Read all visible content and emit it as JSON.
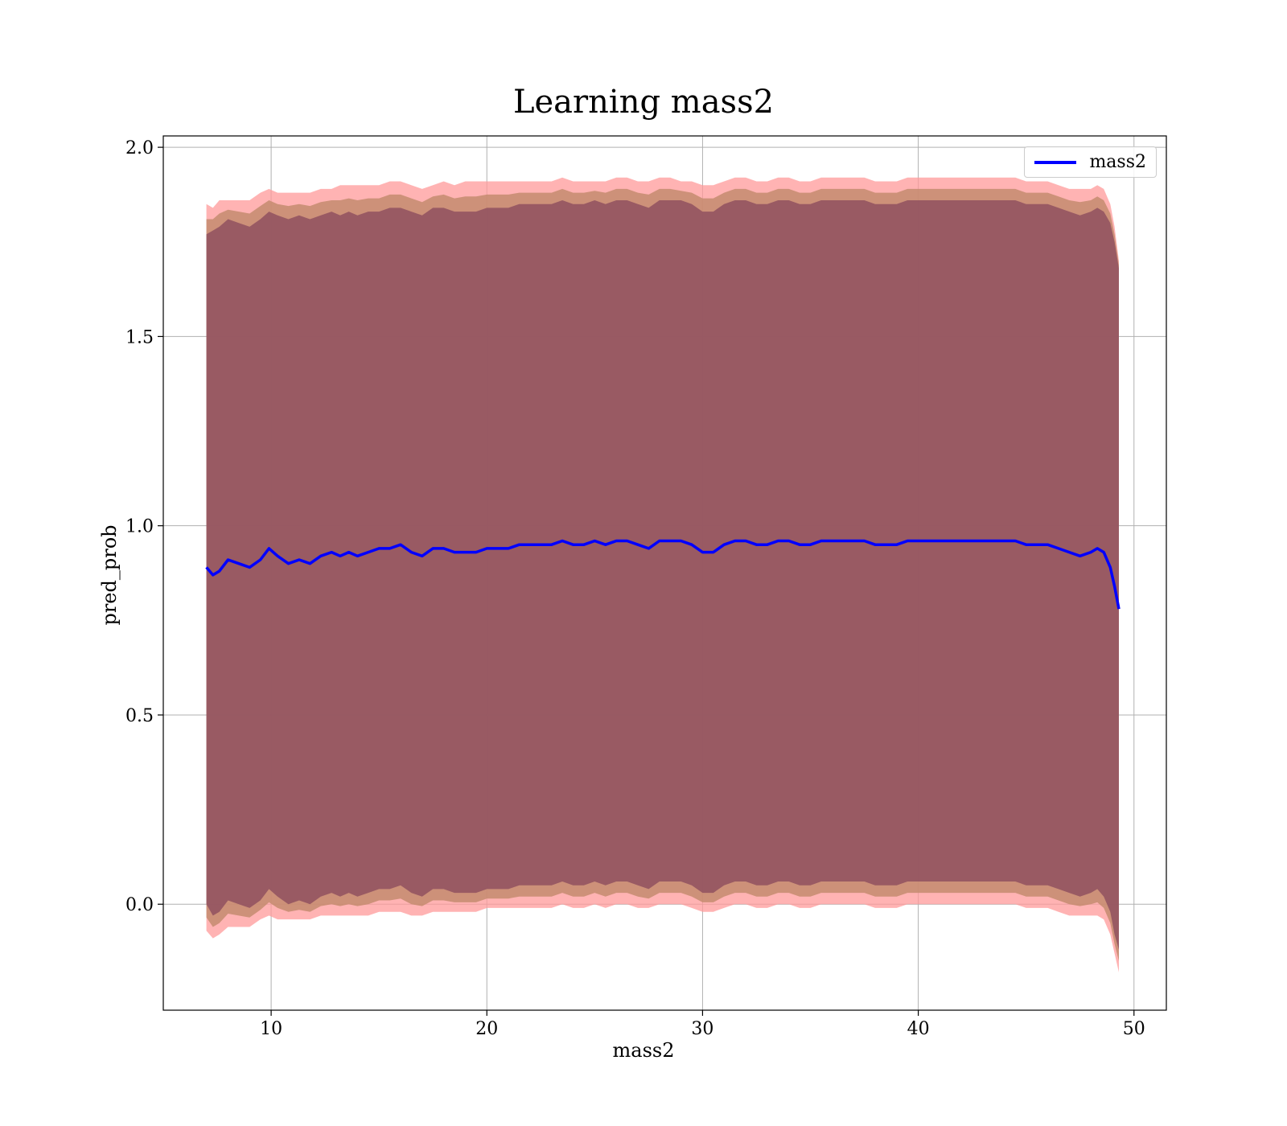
{
  "chart_data": {
    "type": "line",
    "title": "Learning mass2",
    "xlabel": "mass2",
    "ylabel": "pred_prob",
    "xlim": [
      5,
      51.5
    ],
    "ylim": [
      -0.28,
      2.03
    ],
    "xticks": [
      10,
      20,
      30,
      40,
      50
    ],
    "yticks": [
      0.0,
      0.5,
      1.0,
      1.5,
      2.0
    ],
    "ytick_labels": [
      "0.0",
      "0.5",
      "1.0",
      "1.5",
      "2.0"
    ],
    "grid": true,
    "legend": {
      "position": "top-right",
      "entries": [
        "mass2"
      ]
    },
    "colors": {
      "line": "#0000ff",
      "band_outer": "#ff9999",
      "band_inner": "#8b4a5d",
      "band_mid": "#c48b6e"
    },
    "series": [
      {
        "name": "mass2",
        "x": [
          7.0,
          7.3,
          7.6,
          8.0,
          8.5,
          9.0,
          9.5,
          9.9,
          10.3,
          10.8,
          11.3,
          11.8,
          12.3,
          12.8,
          13.2,
          13.6,
          14.0,
          14.5,
          15.0,
          15.5,
          16.0,
          16.5,
          17.0,
          17.5,
          18.0,
          18.5,
          19.0,
          19.5,
          20.0,
          20.5,
          21.0,
          21.5,
          22.0,
          22.5,
          23.0,
          23.5,
          24.0,
          24.5,
          25.0,
          25.5,
          26.0,
          26.5,
          27.0,
          27.5,
          28.0,
          28.5,
          29.0,
          29.5,
          30.0,
          30.5,
          31.0,
          31.5,
          32.0,
          32.5,
          33.0,
          33.5,
          34.0,
          34.5,
          35.0,
          35.5,
          36.0,
          36.5,
          37.0,
          37.5,
          38.0,
          38.5,
          39.0,
          39.5,
          40.0,
          40.5,
          41.0,
          41.5,
          42.0,
          42.5,
          43.0,
          43.5,
          44.0,
          44.5,
          45.0,
          45.5,
          46.0,
          46.5,
          47.0,
          47.5,
          48.0,
          48.3,
          48.6,
          48.9,
          49.1,
          49.3
        ],
        "y": [
          0.89,
          0.87,
          0.88,
          0.91,
          0.9,
          0.89,
          0.91,
          0.94,
          0.92,
          0.9,
          0.91,
          0.9,
          0.92,
          0.93,
          0.92,
          0.93,
          0.92,
          0.93,
          0.94,
          0.94,
          0.95,
          0.93,
          0.92,
          0.94,
          0.94,
          0.93,
          0.93,
          0.93,
          0.94,
          0.94,
          0.94,
          0.95,
          0.95,
          0.95,
          0.95,
          0.96,
          0.95,
          0.95,
          0.96,
          0.95,
          0.96,
          0.96,
          0.95,
          0.94,
          0.96,
          0.96,
          0.96,
          0.95,
          0.93,
          0.93,
          0.95,
          0.96,
          0.96,
          0.95,
          0.95,
          0.96,
          0.96,
          0.95,
          0.95,
          0.96,
          0.96,
          0.96,
          0.96,
          0.96,
          0.95,
          0.95,
          0.95,
          0.96,
          0.96,
          0.96,
          0.96,
          0.96,
          0.96,
          0.96,
          0.96,
          0.96,
          0.96,
          0.96,
          0.95,
          0.95,
          0.95,
          0.94,
          0.93,
          0.92,
          0.93,
          0.94,
          0.93,
          0.89,
          0.84,
          0.78
        ],
        "band_outer_upper": [
          1.85,
          1.84,
          1.86,
          1.86,
          1.86,
          1.86,
          1.88,
          1.89,
          1.88,
          1.88,
          1.88,
          1.88,
          1.89,
          1.89,
          1.9,
          1.9,
          1.9,
          1.9,
          1.9,
          1.91,
          1.91,
          1.9,
          1.89,
          1.9,
          1.91,
          1.9,
          1.91,
          1.91,
          1.91,
          1.91,
          1.91,
          1.91,
          1.91,
          1.91,
          1.91,
          1.92,
          1.91,
          1.91,
          1.91,
          1.91,
          1.92,
          1.92,
          1.91,
          1.91,
          1.92,
          1.92,
          1.91,
          1.91,
          1.9,
          1.9,
          1.91,
          1.92,
          1.92,
          1.91,
          1.91,
          1.92,
          1.92,
          1.91,
          1.91,
          1.92,
          1.92,
          1.92,
          1.92,
          1.92,
          1.91,
          1.91,
          1.91,
          1.92,
          1.92,
          1.92,
          1.92,
          1.92,
          1.92,
          1.92,
          1.92,
          1.92,
          1.92,
          1.92,
          1.91,
          1.91,
          1.91,
          1.9,
          1.89,
          1.89,
          1.89,
          1.9,
          1.89,
          1.85,
          1.79,
          1.7
        ],
        "band_outer_lower": [
          -0.07,
          -0.09,
          -0.08,
          -0.06,
          -0.06,
          -0.06,
          -0.04,
          -0.03,
          -0.04,
          -0.04,
          -0.04,
          -0.04,
          -0.03,
          -0.03,
          -0.03,
          -0.03,
          -0.03,
          -0.03,
          -0.02,
          -0.02,
          -0.02,
          -0.03,
          -0.03,
          -0.02,
          -0.02,
          -0.02,
          -0.02,
          -0.02,
          -0.01,
          -0.01,
          -0.01,
          -0.01,
          -0.01,
          -0.01,
          -0.01,
          0.0,
          -0.01,
          -0.01,
          0.0,
          -0.01,
          0.0,
          0.0,
          -0.01,
          -0.01,
          0.0,
          0.0,
          0.0,
          -0.01,
          -0.02,
          -0.02,
          -0.01,
          0.0,
          0.0,
          -0.01,
          -0.01,
          0.0,
          0.0,
          -0.01,
          -0.01,
          0.0,
          0.0,
          0.0,
          0.0,
          0.0,
          -0.01,
          -0.01,
          -0.01,
          0.0,
          0.0,
          0.0,
          0.0,
          0.0,
          0.0,
          0.0,
          0.0,
          0.0,
          0.0,
          0.0,
          -0.01,
          -0.01,
          -0.01,
          -0.02,
          -0.03,
          -0.03,
          -0.03,
          -0.03,
          -0.04,
          -0.08,
          -0.13,
          -0.18
        ],
        "band_inner_upper": [
          1.77,
          1.78,
          1.79,
          1.81,
          1.8,
          1.79,
          1.81,
          1.83,
          1.82,
          1.81,
          1.82,
          1.81,
          1.82,
          1.83,
          1.82,
          1.83,
          1.82,
          1.83,
          1.83,
          1.84,
          1.84,
          1.83,
          1.82,
          1.84,
          1.84,
          1.83,
          1.83,
          1.83,
          1.84,
          1.84,
          1.84,
          1.85,
          1.85,
          1.85,
          1.85,
          1.86,
          1.85,
          1.85,
          1.86,
          1.85,
          1.86,
          1.86,
          1.85,
          1.84,
          1.86,
          1.86,
          1.86,
          1.85,
          1.83,
          1.83,
          1.85,
          1.86,
          1.86,
          1.85,
          1.85,
          1.86,
          1.86,
          1.85,
          1.85,
          1.86,
          1.86,
          1.86,
          1.86,
          1.86,
          1.85,
          1.85,
          1.85,
          1.86,
          1.86,
          1.86,
          1.86,
          1.86,
          1.86,
          1.86,
          1.86,
          1.86,
          1.86,
          1.86,
          1.85,
          1.85,
          1.85,
          1.84,
          1.83,
          1.82,
          1.83,
          1.84,
          1.83,
          1.8,
          1.75,
          1.68
        ],
        "band_inner_lower": [
          0.0,
          -0.03,
          -0.02,
          0.01,
          0.0,
          -0.01,
          0.01,
          0.04,
          0.02,
          0.0,
          0.01,
          0.0,
          0.02,
          0.03,
          0.02,
          0.03,
          0.02,
          0.03,
          0.04,
          0.04,
          0.05,
          0.03,
          0.02,
          0.04,
          0.04,
          0.03,
          0.03,
          0.03,
          0.04,
          0.04,
          0.04,
          0.05,
          0.05,
          0.05,
          0.05,
          0.06,
          0.05,
          0.05,
          0.06,
          0.05,
          0.06,
          0.06,
          0.05,
          0.04,
          0.06,
          0.06,
          0.06,
          0.05,
          0.03,
          0.03,
          0.05,
          0.06,
          0.06,
          0.05,
          0.05,
          0.06,
          0.06,
          0.05,
          0.05,
          0.06,
          0.06,
          0.06,
          0.06,
          0.06,
          0.05,
          0.05,
          0.05,
          0.06,
          0.06,
          0.06,
          0.06,
          0.06,
          0.06,
          0.06,
          0.06,
          0.06,
          0.06,
          0.06,
          0.05,
          0.05,
          0.05,
          0.04,
          0.03,
          0.02,
          0.03,
          0.04,
          0.02,
          -0.02,
          -0.08,
          -0.12
        ]
      }
    ]
  }
}
